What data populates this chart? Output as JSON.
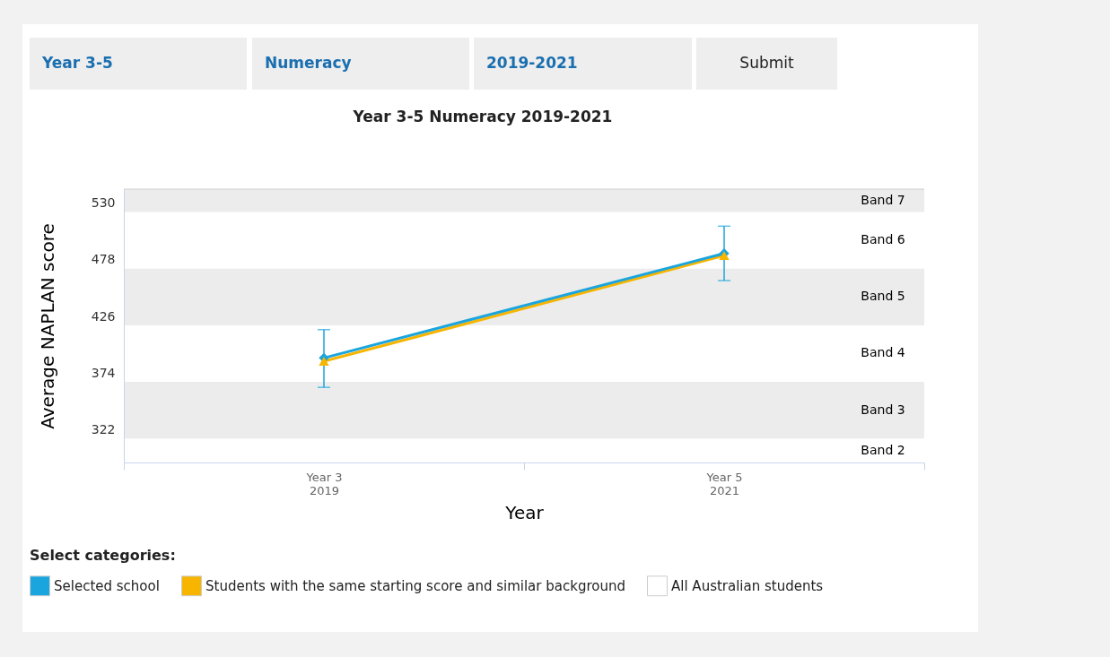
{
  "chart_data": {
    "type": "line",
    "title": "Year 3-5 Numeracy 2019-2021",
    "xlabel": "Year",
    "ylabel": "Average NAPLAN score",
    "legend_title": "Select categories:",
    "legend": "bottom",
    "grid": false,
    "categories": [
      "Year 3\n2019",
      "Year 5\n2021"
    ],
    "ylim": [
      292,
      543
    ],
    "yticks": [
      322,
      374,
      426,
      478,
      530
    ],
    "series": [
      {
        "name": "Selected school",
        "color": "#1aa5de",
        "marker": "diamond",
        "values": [
          388,
          484
        ],
        "errors": [
          [
            361,
            414
          ],
          [
            459,
            509
          ]
        ]
      },
      {
        "name": "Students with the same starting score and similar background",
        "color": "#f7b500",
        "marker": "triangle",
        "values": [
          385,
          482
        ]
      },
      {
        "name": "All Australian students",
        "color": "#ffffff",
        "marker": "square",
        "values": [
          null,
          null
        ]
      }
    ],
    "bands": [
      {
        "axis": "y",
        "from": 522,
        "to": 543,
        "label": "Band 7",
        "color": "#ececec"
      },
      {
        "axis": "y",
        "from": 418,
        "to": 470,
        "label": "Band 5",
        "color": "#ececec"
      },
      {
        "axis": "y",
        "from": 314,
        "to": 366,
        "label": "Band 3",
        "color": "#ececec"
      }
    ],
    "annotations": [
      "Year 3-5",
      "Numeracy",
      "2019-2021",
      "Submit",
      "Band 6",
      "Band 4",
      "Band 2"
    ]
  }
}
